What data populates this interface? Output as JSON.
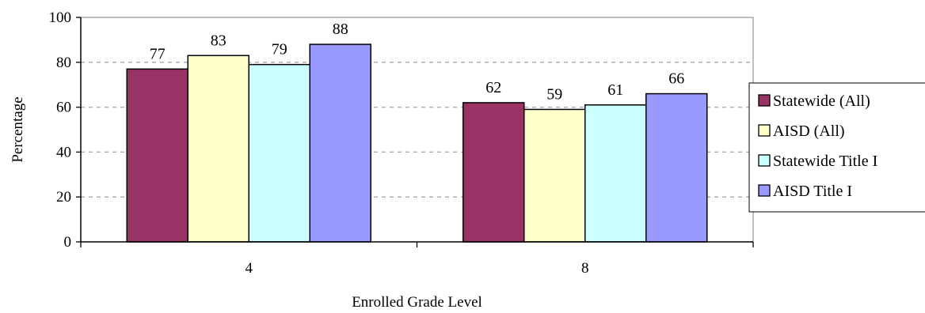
{
  "chart_data": {
    "type": "bar",
    "title": "",
    "xlabel": "Enrolled Grade Level",
    "ylabel": "Percentage",
    "ylim": [
      0,
      100
    ],
    "y_ticks": [
      "0",
      "20",
      "40",
      "60",
      "80",
      "100"
    ],
    "grid": "horizontal dashed",
    "legend_position": "right",
    "categories": [
      "4",
      "8"
    ],
    "series": [
      {
        "name": "Statewide (All)",
        "color": "#993366",
        "values": [
          77,
          62
        ]
      },
      {
        "name": "AISD (All)",
        "color": "#ffffcc",
        "values": [
          83,
          59
        ]
      },
      {
        "name": "Statewide Title I",
        "color": "#ccffff",
        "values": [
          79,
          61
        ]
      },
      {
        "name": "AISD Title I",
        "color": "#9999ff",
        "values": [
          88,
          66
        ]
      }
    ],
    "data_labels": [
      [
        "77",
        "83",
        "79",
        "88"
      ],
      [
        "62",
        "59",
        "61",
        "66"
      ]
    ]
  }
}
